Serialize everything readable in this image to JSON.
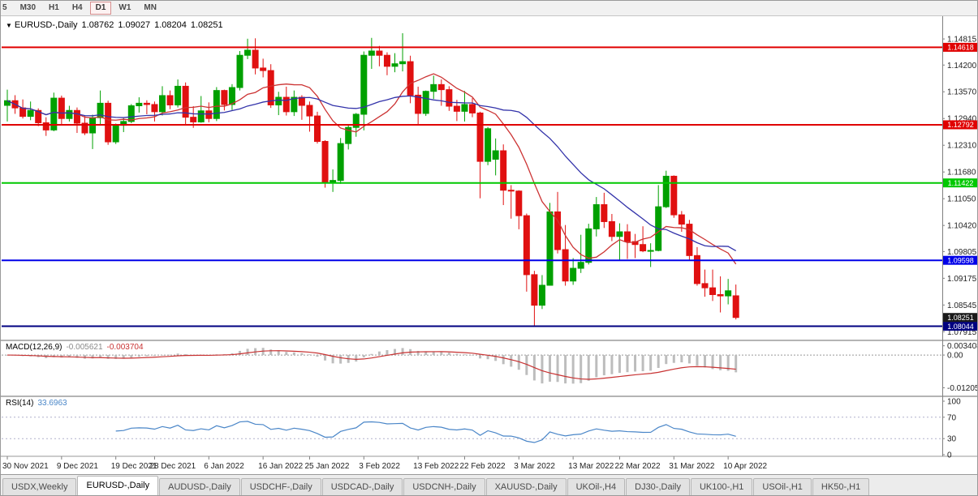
{
  "toolbar": {
    "timeframes": [
      {
        "label": "5",
        "active": false
      },
      {
        "label": "M30",
        "active": false
      },
      {
        "label": "H1",
        "active": false
      },
      {
        "label": "H4",
        "active": false
      },
      {
        "label": "D1",
        "active": true
      },
      {
        "label": "W1",
        "active": false
      },
      {
        "label": "MN",
        "active": false
      }
    ]
  },
  "icons": {
    "dropdown": "▼"
  },
  "chart_title": {
    "symbol": "EURUSD-,Daily",
    "open": "1.08762",
    "high": "1.09027",
    "low": "1.08204",
    "close": "1.08251"
  },
  "macd": {
    "label": "MACD(12,26,9)",
    "value_main": "-0.005621",
    "value_signal": "-0.003704",
    "fast": 12,
    "slow": 26,
    "signal": 9,
    "axis_ticks": [
      "0.003408",
      "0.00",
      "-0.01205"
    ],
    "range": {
      "max": 0.0042,
      "min": -0.0143
    },
    "hist_color": "#bdbdbd",
    "signal_color": "#c83232"
  },
  "rsi": {
    "label": "RSI(14)",
    "value": "33.6963",
    "period": 14,
    "levels": [
      70,
      30
    ],
    "axis_ticks": [
      100,
      70,
      30,
      0
    ],
    "line_color": "#4a86c8"
  },
  "tabs": [
    {
      "label": "USDX,Weekly",
      "active": false
    },
    {
      "label": "EURUSD-,Daily",
      "active": true
    },
    {
      "label": "AUDUSD-,Daily",
      "active": false
    },
    {
      "label": "USDCHF-,Daily",
      "active": false
    },
    {
      "label": "USDCAD-,Daily",
      "active": false
    },
    {
      "label": "USDCNH-,Daily",
      "active": false
    },
    {
      "label": "XAUUSD-,Daily",
      "active": false
    },
    {
      "label": "UKOil-,H4",
      "active": false
    },
    {
      "label": "DJ30-,Daily",
      "active": false
    },
    {
      "label": "UK100-,H1",
      "active": false
    },
    {
      "label": "USOil-,H1",
      "active": false
    },
    {
      "label": "HK50-,H1",
      "active": false
    }
  ],
  "chart_data": {
    "type": "candlestick",
    "symbol": "EURUSD-,Daily",
    "timeframe": "Daily",
    "up_color": "#00a000",
    "down_color": "#e01010",
    "price_axis": {
      "max": 1.1537,
      "min": 1.0773,
      "ticks": [
        "1.14815",
        "1.14200",
        "1.13570",
        "1.12940",
        "1.12310",
        "1.11680",
        "1.11050",
        "1.10420",
        "1.09805",
        "1.09175",
        "1.08545",
        "1.07915"
      ]
    },
    "x_ticks": [
      {
        "label": "30 Nov 2021",
        "i": 0
      },
      {
        "label": "9 Dec 2021",
        "i": 7
      },
      {
        "label": "19 Dec 2021",
        "i": 14
      },
      {
        "label": "28 Dec 2021",
        "i": 19
      },
      {
        "label": "6 Jan 2022",
        "i": 26
      },
      {
        "label": "16 Jan 2022",
        "i": 33
      },
      {
        "label": "25 Jan 2022",
        "i": 39
      },
      {
        "label": "3 Feb 2022",
        "i": 46
      },
      {
        "label": "13 Feb 2022",
        "i": 53
      },
      {
        "label": "22 Feb 2022",
        "i": 59
      },
      {
        "label": "3 Mar 2022",
        "i": 66
      },
      {
        "label": "13 Mar 2022",
        "i": 73
      },
      {
        "label": "22 Mar 2022",
        "i": 79
      },
      {
        "label": "31 Mar 2022",
        "i": 86
      },
      {
        "label": "10 Apr 2022",
        "i": 93
      }
    ],
    "hlines": [
      {
        "price": 1.14618,
        "label": "1.14618",
        "color": "#e00000",
        "width": 2
      },
      {
        "price": 1.12792,
        "label": "1.12792",
        "color": "#e00000",
        "width": 2
      },
      {
        "price": 1.11422,
        "label": "1.11422",
        "color": "#00c800",
        "width": 2
      },
      {
        "price": 1.09598,
        "label": "1.09598",
        "color": "#0000e8",
        "width": 2
      },
      {
        "price": 1.08044,
        "label": "1.08044",
        "color": "#000080",
        "width": 2
      }
    ],
    "current_price": {
      "label": "1.08251",
      "price": 1.08251,
      "bg": "#1a1a1a"
    },
    "moving_averages": [
      {
        "period": 10,
        "color": "#cc3333"
      },
      {
        "period": 24,
        "color": "#3333aa"
      }
    ],
    "candles_ohlc": [
      [
        1.1325,
        1.1362,
        1.1287,
        1.1336
      ],
      [
        1.1336,
        1.1349,
        1.1305,
        1.1319
      ],
      [
        1.1319,
        1.1339,
        1.1294,
        1.1299
      ],
      [
        1.1299,
        1.1334,
        1.129,
        1.1313
      ],
      [
        1.1313,
        1.1318,
        1.1276,
        1.1284
      ],
      [
        1.1284,
        1.1297,
        1.1253,
        1.1267
      ],
      [
        1.1267,
        1.1355,
        1.1264,
        1.1342
      ],
      [
        1.1342,
        1.1348,
        1.128,
        1.1294
      ],
      [
        1.1294,
        1.1324,
        1.1287,
        1.1313
      ],
      [
        1.1313,
        1.132,
        1.126,
        1.1283
      ],
      [
        1.1283,
        1.13,
        1.1255,
        1.126
      ],
      [
        1.126,
        1.1303,
        1.1222,
        1.1296
      ],
      [
        1.1296,
        1.136,
        1.128,
        1.133
      ],
      [
        1.133,
        1.1336,
        1.1232,
        1.1239
      ],
      [
        1.1239,
        1.1282,
        1.1234,
        1.1278
      ],
      [
        1.1278,
        1.1295,
        1.1262,
        1.1287
      ],
      [
        1.1287,
        1.1328,
        1.1283,
        1.1324
      ],
      [
        1.1324,
        1.1344,
        1.1308,
        1.133
      ],
      [
        1.133,
        1.1337,
        1.1304,
        1.1327
      ],
      [
        1.1327,
        1.1334,
        1.1287,
        1.131
      ],
      [
        1.131,
        1.137,
        1.1301,
        1.1348
      ],
      [
        1.1348,
        1.136,
        1.1316,
        1.1326
      ],
      [
        1.1326,
        1.1386,
        1.132,
        1.137
      ],
      [
        1.137,
        1.1379,
        1.1279,
        1.1297
      ],
      [
        1.1297,
        1.1323,
        1.1272,
        1.1286
      ],
      [
        1.1286,
        1.1347,
        1.1284,
        1.1312
      ],
      [
        1.1312,
        1.1332,
        1.1285,
        1.1294
      ],
      [
        1.1294,
        1.1368,
        1.1288,
        1.136
      ],
      [
        1.136,
        1.1362,
        1.1313,
        1.1327
      ],
      [
        1.1327,
        1.1375,
        1.1314,
        1.1367
      ],
      [
        1.1367,
        1.1453,
        1.136,
        1.1443
      ],
      [
        1.1443,
        1.1482,
        1.1434,
        1.1455
      ],
      [
        1.1455,
        1.1483,
        1.1398,
        1.1413
      ],
      [
        1.1413,
        1.1435,
        1.1391,
        1.1407
      ],
      [
        1.1407,
        1.1422,
        1.1319,
        1.1326
      ],
      [
        1.1326,
        1.1357,
        1.1302,
        1.1344
      ],
      [
        1.1344,
        1.1369,
        1.1301,
        1.131
      ],
      [
        1.131,
        1.136,
        1.13,
        1.1344
      ],
      [
        1.1344,
        1.1349,
        1.1291,
        1.1325
      ],
      [
        1.1325,
        1.1334,
        1.1263,
        1.13
      ],
      [
        1.13,
        1.131,
        1.1235,
        1.124
      ],
      [
        1.124,
        1.1243,
        1.1131,
        1.1144
      ],
      [
        1.1144,
        1.1174,
        1.1121,
        1.1148
      ],
      [
        1.1148,
        1.1248,
        1.114,
        1.1235
      ],
      [
        1.1235,
        1.128,
        1.1221,
        1.1273
      ],
      [
        1.1273,
        1.1307,
        1.1251,
        1.1304
      ],
      [
        1.1304,
        1.1452,
        1.1266,
        1.1443
      ],
      [
        1.1443,
        1.1484,
        1.1411,
        1.1453
      ],
      [
        1.1453,
        1.1465,
        1.1417,
        1.1443
      ],
      [
        1.1443,
        1.145,
        1.1396,
        1.1417
      ],
      [
        1.1417,
        1.1448,
        1.1403,
        1.1423
      ],
      [
        1.1423,
        1.1495,
        1.1405,
        1.1428
      ],
      [
        1.1428,
        1.1442,
        1.133,
        1.1349
      ],
      [
        1.1349,
        1.1369,
        1.1279,
        1.1306
      ],
      [
        1.1306,
        1.136,
        1.13,
        1.1358
      ],
      [
        1.1358,
        1.1395,
        1.134,
        1.1374
      ],
      [
        1.1374,
        1.1386,
        1.1324,
        1.1362
      ],
      [
        1.1362,
        1.137,
        1.1312,
        1.1323
      ],
      [
        1.1323,
        1.1338,
        1.1288,
        1.1311
      ],
      [
        1.1311,
        1.1359,
        1.1287,
        1.1327
      ],
      [
        1.1327,
        1.1342,
        1.1297,
        1.1307
      ],
      [
        1.1307,
        1.131,
        1.1106,
        1.1193
      ],
      [
        1.1193,
        1.1274,
        1.1184,
        1.127
      ],
      [
        1.1198,
        1.1247,
        1.116,
        1.1218
      ],
      [
        1.1218,
        1.1233,
        1.109,
        1.1125
      ],
      [
        1.1125,
        1.1137,
        1.1058,
        1.1123
      ],
      [
        1.1123,
        1.1125,
        1.1033,
        1.1065
      ],
      [
        1.1065,
        1.107,
        1.0886,
        1.0926
      ],
      [
        1.0926,
        1.0935,
        1.0806,
        1.0854
      ],
      [
        1.0854,
        1.0925,
        1.0845,
        1.0901
      ],
      [
        1.0901,
        1.1095,
        1.09,
        1.1074
      ],
      [
        1.1074,
        1.1121,
        1.0976,
        1.0985
      ],
      [
        1.0985,
        1.1043,
        1.09,
        1.0911
      ],
      [
        1.0911,
        1.0965,
        1.0902,
        1.0941
      ],
      [
        1.0941,
        1.102,
        1.093,
        1.0955
      ],
      [
        1.0955,
        1.1046,
        1.095,
        1.1034
      ],
      [
        1.1034,
        1.1109,
        1.1016,
        1.1091
      ],
      [
        1.1091,
        1.1119,
        1.1036,
        1.1051
      ],
      [
        1.1051,
        1.1069,
        1.1005,
        1.1016
      ],
      [
        1.1016,
        1.1047,
        1.0961,
        1.1027
      ],
      [
        1.1027,
        1.1045,
        1.0963,
        1.1004
      ],
      [
        1.1004,
        1.1022,
        1.0965,
        1.0997
      ],
      [
        1.0997,
        1.104,
        1.0979,
        1.0982
      ],
      [
        1.0982,
        1.1,
        1.0944,
        1.0983
      ],
      [
        1.0983,
        1.1137,
        1.0981,
        1.1086
      ],
      [
        1.1086,
        1.1171,
        1.1083,
        1.1158
      ],
      [
        1.1158,
        1.116,
        1.106,
        1.1067
      ],
      [
        1.1067,
        1.1076,
        1.1027,
        1.1045
      ],
      [
        1.1045,
        1.1055,
        1.096,
        1.0971
      ],
      [
        1.0971,
        1.0991,
        1.09,
        1.0905
      ],
      [
        1.0905,
        1.0938,
        1.0874,
        1.0895
      ],
      [
        1.0895,
        1.0938,
        1.0864,
        1.0879
      ],
      [
        1.0879,
        1.0922,
        1.0837,
        1.0876
      ],
      [
        1.0876,
        1.0916,
        1.0856,
        1.0888
      ],
      [
        1.08762,
        1.09027,
        1.08204,
        1.08251
      ]
    ]
  }
}
